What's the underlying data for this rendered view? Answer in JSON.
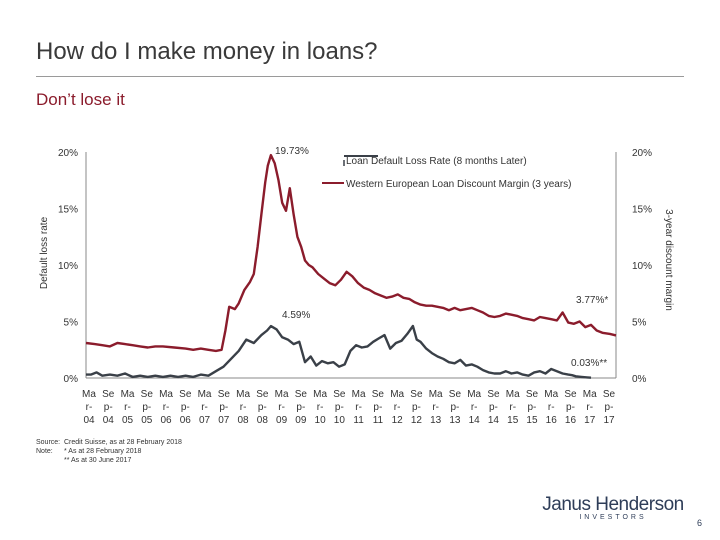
{
  "slide": {
    "title": "How do I make money in loans?",
    "subtitle": "Don’t lose it",
    "page_number": "6"
  },
  "notes": {
    "source_label": "Source:",
    "source_text": "Credit Suisse, as at 28 February 2018",
    "note_label": "Note:",
    "note1": "* As at 28 February 2018",
    "note2": "** As at 30 June 2017"
  },
  "logo": {
    "main": "Janus Henderson",
    "sub": "INVESTORS"
  },
  "colors": {
    "default_rate": "#8b1c2c",
    "discount_margin": "#3a4048",
    "title": "#3a3a3a"
  },
  "chart_data": {
    "type": "line",
    "title": "",
    "ylabel": "Default loss rate",
    "ylabel_right": "3-year discount margin",
    "ylim": [
      0,
      20
    ],
    "ylim_right": [
      0,
      20
    ],
    "y_ticks": [
      "0%",
      "5%",
      "10%",
      "15%",
      "20%"
    ],
    "y_ticks_right": [
      "0%",
      "5%",
      "10%",
      "15%",
      "20%"
    ],
    "x_ticks": [
      "Mar-04",
      "Sep-04",
      "Mar-05",
      "Sep-05",
      "Mar-06",
      "Sep-06",
      "Mar-07",
      "Sep-07",
      "Mar-08",
      "Sep-08",
      "Mar-09",
      "Sep-09",
      "Mar-10",
      "Sep-10",
      "Mar-11",
      "Sep-11",
      "Mar-12",
      "Sep-12",
      "Mar-13",
      "Sep-13",
      "Mar-14",
      "Sep-14",
      "Mar-15",
      "Sep-15",
      "Mar-16",
      "Sep-16",
      "Mar-17",
      "Sep-17"
    ],
    "x_tick_lines": [
      [
        "Ma",
        "Se",
        "Ma",
        "Se",
        "Ma",
        "Se",
        "Ma",
        "Se",
        "Ma",
        "Se",
        "Ma",
        "Se",
        "Ma",
        "Se",
        "Ma",
        "Se",
        "Ma",
        "Se",
        "Ma",
        "Se",
        "Ma",
        "Se",
        "Ma",
        "Se",
        "Ma",
        "Se",
        "Ma",
        "Se"
      ],
      [
        "r-",
        "p-",
        "r-",
        "p-",
        "r-",
        "p-",
        "r-",
        "p-",
        "r-",
        "p-",
        "r-",
        "p-",
        "r-",
        "p-",
        "r-",
        "p-",
        "r-",
        "p-",
        "r-",
        "p-",
        "r-",
        "p-",
        "r-",
        "p-",
        "r-",
        "p-",
        "r-",
        "p-"
      ],
      [
        "04",
        "04",
        "05",
        "05",
        "06",
        "06",
        "07",
        "07",
        "08",
        "08",
        "09",
        "09",
        "10",
        "10",
        "11",
        "11",
        "12",
        "12",
        "13",
        "13",
        "14",
        "14",
        "15",
        "15",
        "16",
        "16",
        "17",
        "17"
      ]
    ],
    "legend_position": "top-right",
    "grid": false,
    "annotations": [
      "19.73%",
      "4.59%",
      "3.77%*",
      "0.03%**"
    ],
    "series": [
      {
        "name": "Western European Loan Discount Margin (3 years)",
        "axis": "right",
        "color": "#8b1c2c",
        "x": [
          2004.17,
          2004.4,
          2004.6,
          2004.8,
          2005.0,
          2005.2,
          2005.4,
          2005.6,
          2005.8,
          2006.0,
          2006.2,
          2006.5,
          2006.8,
          2007.0,
          2007.2,
          2007.4,
          2007.6,
          2007.75,
          2007.85,
          2007.95,
          2008.1,
          2008.2,
          2008.35,
          2008.5,
          2008.6,
          2008.7,
          2008.8,
          2008.9,
          2008.97,
          2009.05,
          2009.15,
          2009.25,
          2009.35,
          2009.45,
          2009.55,
          2009.65,
          2009.75,
          2009.85,
          2009.95,
          2010.05,
          2010.15,
          2010.3,
          2010.45,
          2010.6,
          2010.75,
          2010.9,
          2011.05,
          2011.2,
          2011.35,
          2011.5,
          2011.65,
          2011.8,
          2011.95,
          2012.1,
          2012.25,
          2012.4,
          2012.55,
          2012.7,
          2012.85,
          2013.0,
          2013.15,
          2013.3,
          2013.45,
          2013.6,
          2013.75,
          2013.9,
          2014.05,
          2014.2,
          2014.35,
          2014.5,
          2014.65,
          2014.8,
          2014.95,
          2015.1,
          2015.25,
          2015.4,
          2015.55,
          2015.7,
          2015.85,
          2016.0,
          2016.15,
          2016.3,
          2016.45,
          2016.6,
          2016.75,
          2016.9,
          2017.05,
          2017.2,
          2017.35,
          2017.5,
          2017.65,
          2017.8,
          2018.0,
          2018.16
        ],
        "values": [
          3.1,
          3.0,
          2.9,
          2.8,
          3.1,
          3.0,
          2.9,
          2.8,
          2.7,
          2.8,
          2.8,
          2.7,
          2.6,
          2.5,
          2.6,
          2.5,
          2.4,
          2.5,
          4.2,
          6.3,
          6.1,
          6.6,
          7.8,
          8.5,
          9.2,
          11.6,
          14.5,
          17.3,
          18.8,
          19.73,
          19.0,
          17.5,
          15.5,
          14.8,
          16.8,
          14.5,
          12.5,
          11.6,
          10.4,
          10.0,
          9.8,
          9.2,
          8.8,
          8.4,
          8.2,
          8.7,
          9.4,
          9.0,
          8.4,
          8.0,
          7.8,
          7.5,
          7.3,
          7.1,
          7.2,
          7.4,
          7.1,
          7.0,
          6.7,
          6.5,
          6.4,
          6.4,
          6.3,
          6.2,
          6.0,
          6.2,
          6.0,
          6.1,
          6.2,
          6.0,
          5.8,
          5.5,
          5.4,
          5.5,
          5.7,
          5.6,
          5.5,
          5.3,
          5.2,
          5.1,
          5.4,
          5.3,
          5.2,
          5.1,
          5.8,
          4.9,
          4.8,
          5.0,
          4.5,
          4.7,
          4.2,
          4.0,
          3.9,
          3.77
        ]
      },
      {
        "name": "Loan Default Loss Rate (8 months Later)",
        "axis": "left",
        "color": "#3a4048",
        "x": [
          2004.17,
          2004.3,
          2004.45,
          2004.6,
          2004.8,
          2005.0,
          2005.2,
          2005.4,
          2005.6,
          2005.8,
          2006.0,
          2006.2,
          2006.4,
          2006.6,
          2006.8,
          2007.0,
          2007.2,
          2007.4,
          2007.6,
          2007.8,
          2008.0,
          2008.2,
          2008.4,
          2008.6,
          2008.8,
          2008.95,
          2009.05,
          2009.2,
          2009.35,
          2009.5,
          2009.65,
          2009.8,
          2009.95,
          2010.1,
          2010.25,
          2010.4,
          2010.55,
          2010.7,
          2010.85,
          2011.0,
          2011.15,
          2011.3,
          2011.45,
          2011.6,
          2011.75,
          2011.9,
          2012.05,
          2012.2,
          2012.35,
          2012.5,
          2012.65,
          2012.8,
          2012.9,
          2013.0,
          2013.15,
          2013.3,
          2013.45,
          2013.6,
          2013.75,
          2013.9,
          2014.05,
          2014.2,
          2014.35,
          2014.5,
          2014.65,
          2014.8,
          2014.95,
          2015.1,
          2015.25,
          2015.4,
          2015.55,
          2015.7,
          2015.85,
          2016.0,
          2016.15,
          2016.3,
          2016.45,
          2016.6,
          2016.75,
          2016.9,
          2017.0,
          2017.1,
          2017.25,
          2017.4,
          2017.5
        ],
        "values": [
          0.3,
          0.3,
          0.5,
          0.2,
          0.3,
          0.2,
          0.4,
          0.1,
          0.2,
          0.1,
          0.2,
          0.1,
          0.2,
          0.1,
          0.2,
          0.1,
          0.3,
          0.2,
          0.6,
          1.0,
          1.7,
          2.4,
          3.4,
          3.1,
          3.8,
          4.2,
          4.59,
          4.3,
          3.6,
          3.4,
          3.0,
          3.2,
          1.4,
          1.9,
          1.1,
          1.5,
          1.3,
          1.4,
          1.0,
          1.2,
          2.4,
          2.9,
          2.7,
          2.8,
          3.2,
          3.5,
          3.8,
          2.6,
          3.1,
          3.3,
          3.9,
          4.6,
          3.4,
          3.2,
          2.6,
          2.2,
          1.9,
          1.7,
          1.4,
          1.3,
          1.6,
          1.1,
          1.2,
          1.0,
          0.7,
          0.5,
          0.4,
          0.4,
          0.6,
          0.4,
          0.5,
          0.3,
          0.2,
          0.5,
          0.6,
          0.4,
          0.8,
          0.6,
          0.4,
          0.3,
          0.25,
          0.15,
          0.1,
          0.05,
          0.03
        ]
      }
    ]
  }
}
